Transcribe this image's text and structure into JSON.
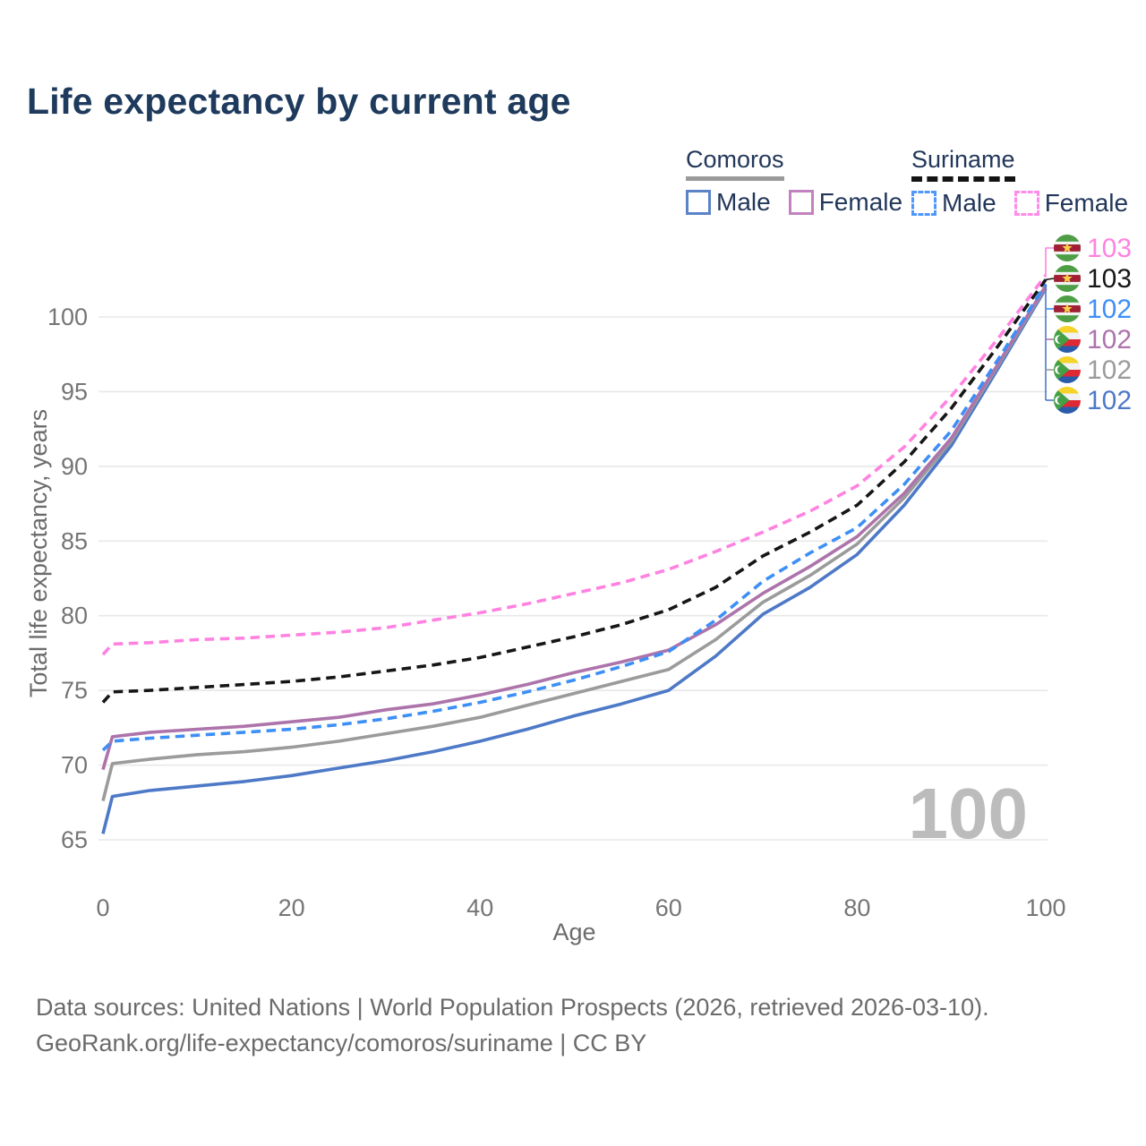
{
  "title": "Life expectancy by current age",
  "legend": {
    "groups": [
      {
        "country": "Comoros",
        "line_style": "solid",
        "underline_color": "#9a9a9a",
        "items": [
          {
            "label": "Male",
            "color": "#5b84c8",
            "dash": false
          },
          {
            "label": "Female",
            "color": "#c183bf",
            "dash": false
          }
        ]
      },
      {
        "country": "Suriname",
        "line_style": "dashed",
        "underline_color": "#141414",
        "items": [
          {
            "label": "Male",
            "color": "#4e97fd",
            "dash": true
          },
          {
            "label": "Female",
            "color": "#ff8ce9",
            "dash": true
          }
        ]
      }
    ]
  },
  "chart_data": {
    "type": "line",
    "title": "Life expectancy by current age",
    "xlabel": "Age",
    "ylabel": "Total life expectancy, years",
    "xlim": [
      0,
      100
    ],
    "ylim": [
      65,
      103
    ],
    "xticks": [
      0,
      20,
      40,
      60,
      80,
      100
    ],
    "yticks": [
      65,
      70,
      75,
      80,
      85,
      90,
      95,
      100
    ],
    "grid": true,
    "legend_position": "top-right",
    "watermark": "100",
    "x": [
      0,
      1,
      5,
      10,
      15,
      20,
      25,
      30,
      35,
      40,
      45,
      50,
      55,
      60,
      65,
      70,
      75,
      80,
      85,
      90,
      95,
      100
    ],
    "series": [
      {
        "name": "Comoros Male",
        "country": "Comoros",
        "sex": "Male",
        "style": "solid",
        "color": "#4d79c7",
        "end_label": "102",
        "values": [
          65.4,
          67.9,
          68.3,
          68.6,
          68.9,
          69.3,
          69.8,
          70.3,
          70.9,
          71.6,
          72.4,
          73.3,
          74.1,
          75.0,
          77.3,
          80.1,
          81.9,
          84.1,
          87.4,
          91.4,
          96.6,
          101.9
        ]
      },
      {
        "name": "Comoros Total",
        "country": "Comoros",
        "sex": "Both sexes",
        "style": "solid",
        "color": "#9b9b9b",
        "end_label": "102",
        "values": [
          67.6,
          70.1,
          70.4,
          70.7,
          70.9,
          71.2,
          71.6,
          72.1,
          72.6,
          73.2,
          74.0,
          74.8,
          75.6,
          76.4,
          78.4,
          80.9,
          82.7,
          84.8,
          87.9,
          91.7,
          96.8,
          102.0
        ]
      },
      {
        "name": "Comoros Female",
        "country": "Comoros",
        "sex": "Female",
        "style": "solid",
        "color": "#ad74ab",
        "end_label": "102",
        "values": [
          69.7,
          71.9,
          72.2,
          72.4,
          72.6,
          72.9,
          73.2,
          73.7,
          74.1,
          74.7,
          75.4,
          76.2,
          76.9,
          77.7,
          79.4,
          81.5,
          83.3,
          85.3,
          88.2,
          91.9,
          96.9,
          102.1
        ]
      },
      {
        "name": "Suriname Male",
        "country": "Suriname",
        "sex": "Male",
        "style": "dashed",
        "color": "#3d8ff5",
        "end_label": "102",
        "values": [
          71.0,
          71.6,
          71.8,
          72.0,
          72.2,
          72.4,
          72.7,
          73.1,
          73.6,
          74.2,
          74.9,
          75.7,
          76.6,
          77.6,
          79.7,
          82.3,
          84.2,
          85.9,
          88.8,
          92.4,
          97.2,
          102.2
        ]
      },
      {
        "name": "Suriname Total",
        "country": "Suriname",
        "sex": "Both sexes",
        "style": "dashed",
        "color": "#161616",
        "end_label": "103",
        "values": [
          74.2,
          74.9,
          75.0,
          75.2,
          75.4,
          75.6,
          75.9,
          76.3,
          76.7,
          77.2,
          77.9,
          78.6,
          79.4,
          80.4,
          81.9,
          84.0,
          85.6,
          87.4,
          90.3,
          93.9,
          98.1,
          102.5
        ]
      },
      {
        "name": "Suriname Female",
        "country": "Suriname",
        "sex": "Female",
        "style": "dashed",
        "color": "#ff82e1",
        "end_label": "103",
        "values": [
          77.4,
          78.1,
          78.2,
          78.4,
          78.5,
          78.7,
          78.9,
          79.2,
          79.7,
          80.2,
          80.8,
          81.5,
          82.2,
          83.1,
          84.3,
          85.6,
          87.0,
          88.7,
          91.3,
          94.7,
          98.6,
          102.8
        ]
      }
    ]
  },
  "right_labels": [
    {
      "flag": "suriname",
      "value": "103",
      "color": "#ff82e1"
    },
    {
      "flag": "suriname",
      "value": "103",
      "color": "#161616"
    },
    {
      "flag": "suriname",
      "value": "102",
      "color": "#3d8ff5"
    },
    {
      "flag": "comoros",
      "value": "102",
      "color": "#ad74ab"
    },
    {
      "flag": "comoros",
      "value": "102",
      "color": "#9b9b9b"
    },
    {
      "flag": "comoros",
      "value": "102",
      "color": "#4d79c7"
    }
  ],
  "colors": {
    "title": "#1e3a5c",
    "tick_labels": "#757575",
    "axis_titles": "#6b6b6b",
    "gridline": "#e8e8e8",
    "watermark": "#bcbcbc",
    "footer": "#6b6b6b"
  },
  "footer": {
    "line1": "Data sources: United Nations | World Population Prospects (2026, retrieved 2026-03-10).",
    "line2": "GeoRank.org/life-expectancy/comoros/suriname | CC BY"
  }
}
